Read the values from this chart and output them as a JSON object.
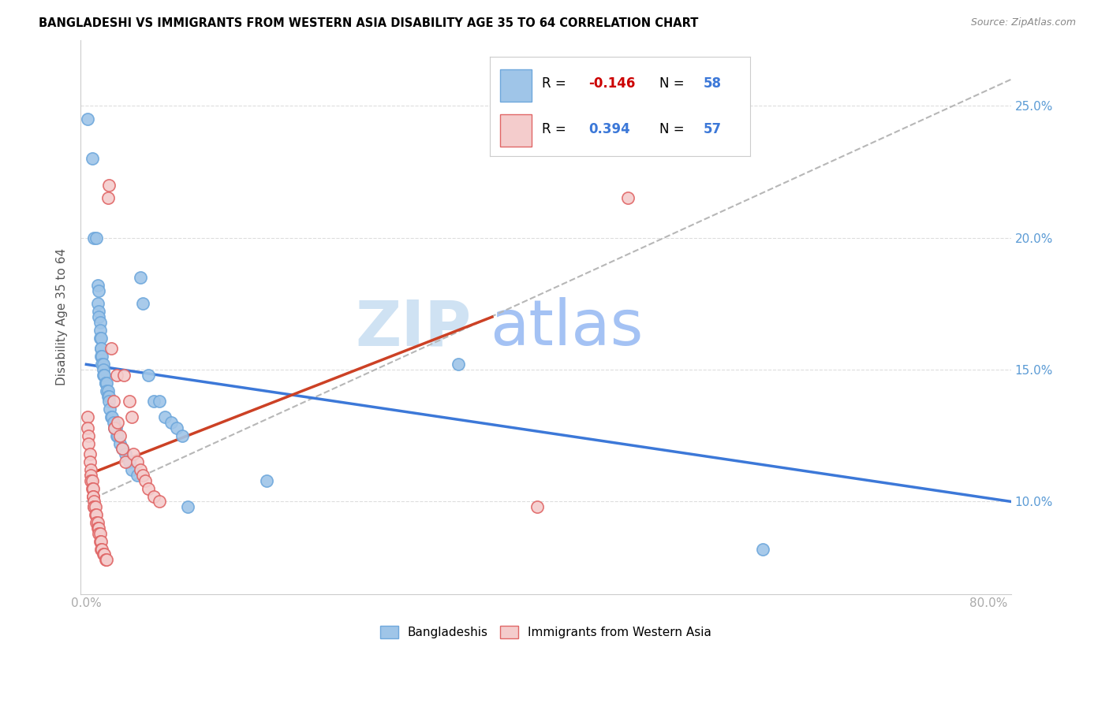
{
  "title": "BANGLADESHI VS IMMIGRANTS FROM WESTERN ASIA DISABILITY AGE 35 TO 64 CORRELATION CHART",
  "source": "Source: ZipAtlas.com",
  "ylabel": "Disability Age 35 to 64",
  "y_ticks": [
    0.1,
    0.15,
    0.2,
    0.25
  ],
  "y_tick_labels": [
    "10.0%",
    "15.0%",
    "20.0%",
    "25.0%"
  ],
  "xlim": [
    -0.005,
    0.82
  ],
  "ylim": [
    0.065,
    0.275
  ],
  "bangladeshi_R": "-0.146",
  "bangladeshi_N": "58",
  "western_asia_R": "0.394",
  "western_asia_N": "57",
  "blue_color": "#9fc5e8",
  "blue_edge_color": "#6fa8dc",
  "pink_color": "#f4cccc",
  "pink_edge_color": "#e06666",
  "blue_line_color": "#3c78d8",
  "pink_line_color": "#cc4125",
  "dashed_line_color": "#b7b7b7",
  "legend_R_color": "#cc0000",
  "legend_N_color": "#3c78d8",
  "legend_label_color": "#3c78d8",
  "watermark_zip_color": "#cfe2f3",
  "watermark_atlas_color": "#a4c2f4",
  "bangladeshi_points": [
    [
      0.001,
      0.245
    ],
    [
      0.005,
      0.23
    ],
    [
      0.007,
      0.2
    ],
    [
      0.009,
      0.2
    ],
    [
      0.01,
      0.182
    ],
    [
      0.01,
      0.175
    ],
    [
      0.011,
      0.18
    ],
    [
      0.011,
      0.172
    ],
    [
      0.011,
      0.17
    ],
    [
      0.012,
      0.168
    ],
    [
      0.012,
      0.165
    ],
    [
      0.012,
      0.162
    ],
    [
      0.013,
      0.162
    ],
    [
      0.013,
      0.158
    ],
    [
      0.013,
      0.158
    ],
    [
      0.013,
      0.155
    ],
    [
      0.014,
      0.155
    ],
    [
      0.014,
      0.152
    ],
    [
      0.015,
      0.152
    ],
    [
      0.015,
      0.15
    ],
    [
      0.015,
      0.148
    ],
    [
      0.016,
      0.148
    ],
    [
      0.016,
      0.148
    ],
    [
      0.017,
      0.145
    ],
    [
      0.017,
      0.145
    ],
    [
      0.018,
      0.145
    ],
    [
      0.018,
      0.142
    ],
    [
      0.019,
      0.142
    ],
    [
      0.019,
      0.14
    ],
    [
      0.02,
      0.14
    ],
    [
      0.02,
      0.138
    ],
    [
      0.021,
      0.135
    ],
    [
      0.022,
      0.132
    ],
    [
      0.023,
      0.132
    ],
    [
      0.024,
      0.13
    ],
    [
      0.025,
      0.128
    ],
    [
      0.026,
      0.128
    ],
    [
      0.027,
      0.125
    ],
    [
      0.028,
      0.125
    ],
    [
      0.03,
      0.122
    ],
    [
      0.032,
      0.12
    ],
    [
      0.035,
      0.118
    ],
    [
      0.038,
      0.115
    ],
    [
      0.04,
      0.112
    ],
    [
      0.045,
      0.11
    ],
    [
      0.048,
      0.185
    ],
    [
      0.05,
      0.175
    ],
    [
      0.055,
      0.148
    ],
    [
      0.06,
      0.138
    ],
    [
      0.065,
      0.138
    ],
    [
      0.07,
      0.132
    ],
    [
      0.075,
      0.13
    ],
    [
      0.08,
      0.128
    ],
    [
      0.085,
      0.125
    ],
    [
      0.09,
      0.098
    ],
    [
      0.16,
      0.108
    ],
    [
      0.33,
      0.152
    ],
    [
      0.6,
      0.082
    ]
  ],
  "western_asia_points": [
    [
      0.001,
      0.132
    ],
    [
      0.001,
      0.128
    ],
    [
      0.002,
      0.125
    ],
    [
      0.002,
      0.122
    ],
    [
      0.003,
      0.118
    ],
    [
      0.003,
      0.115
    ],
    [
      0.004,
      0.112
    ],
    [
      0.004,
      0.11
    ],
    [
      0.004,
      0.108
    ],
    [
      0.005,
      0.108
    ],
    [
      0.005,
      0.105
    ],
    [
      0.006,
      0.105
    ],
    [
      0.006,
      0.102
    ],
    [
      0.006,
      0.102
    ],
    [
      0.007,
      0.1
    ],
    [
      0.007,
      0.098
    ],
    [
      0.007,
      0.098
    ],
    [
      0.008,
      0.098
    ],
    [
      0.008,
      0.095
    ],
    [
      0.009,
      0.095
    ],
    [
      0.009,
      0.092
    ],
    [
      0.01,
      0.092
    ],
    [
      0.01,
      0.09
    ],
    [
      0.011,
      0.09
    ],
    [
      0.011,
      0.088
    ],
    [
      0.012,
      0.088
    ],
    [
      0.012,
      0.085
    ],
    [
      0.013,
      0.085
    ],
    [
      0.013,
      0.082
    ],
    [
      0.014,
      0.082
    ],
    [
      0.015,
      0.08
    ],
    [
      0.016,
      0.08
    ],
    [
      0.017,
      0.078
    ],
    [
      0.018,
      0.078
    ],
    [
      0.019,
      0.215
    ],
    [
      0.02,
      0.22
    ],
    [
      0.022,
      0.158
    ],
    [
      0.024,
      0.138
    ],
    [
      0.025,
      0.128
    ],
    [
      0.027,
      0.148
    ],
    [
      0.028,
      0.13
    ],
    [
      0.03,
      0.125
    ],
    [
      0.032,
      0.12
    ],
    [
      0.033,
      0.148
    ],
    [
      0.035,
      0.115
    ],
    [
      0.038,
      0.138
    ],
    [
      0.04,
      0.132
    ],
    [
      0.042,
      0.118
    ],
    [
      0.045,
      0.115
    ],
    [
      0.048,
      0.112
    ],
    [
      0.05,
      0.11
    ],
    [
      0.052,
      0.108
    ],
    [
      0.055,
      0.105
    ],
    [
      0.06,
      0.102
    ],
    [
      0.065,
      0.1
    ],
    [
      0.4,
      0.098
    ],
    [
      0.48,
      0.215
    ]
  ],
  "blue_trend_x": [
    0.0,
    0.82
  ],
  "blue_trend_y": [
    0.152,
    0.1
  ],
  "pink_trend_x": [
    0.0,
    0.36
  ],
  "pink_trend_y": [
    0.11,
    0.17
  ],
  "dash_trend_x": [
    0.0,
    0.82
  ],
  "dash_trend_y": [
    0.1,
    0.26
  ]
}
